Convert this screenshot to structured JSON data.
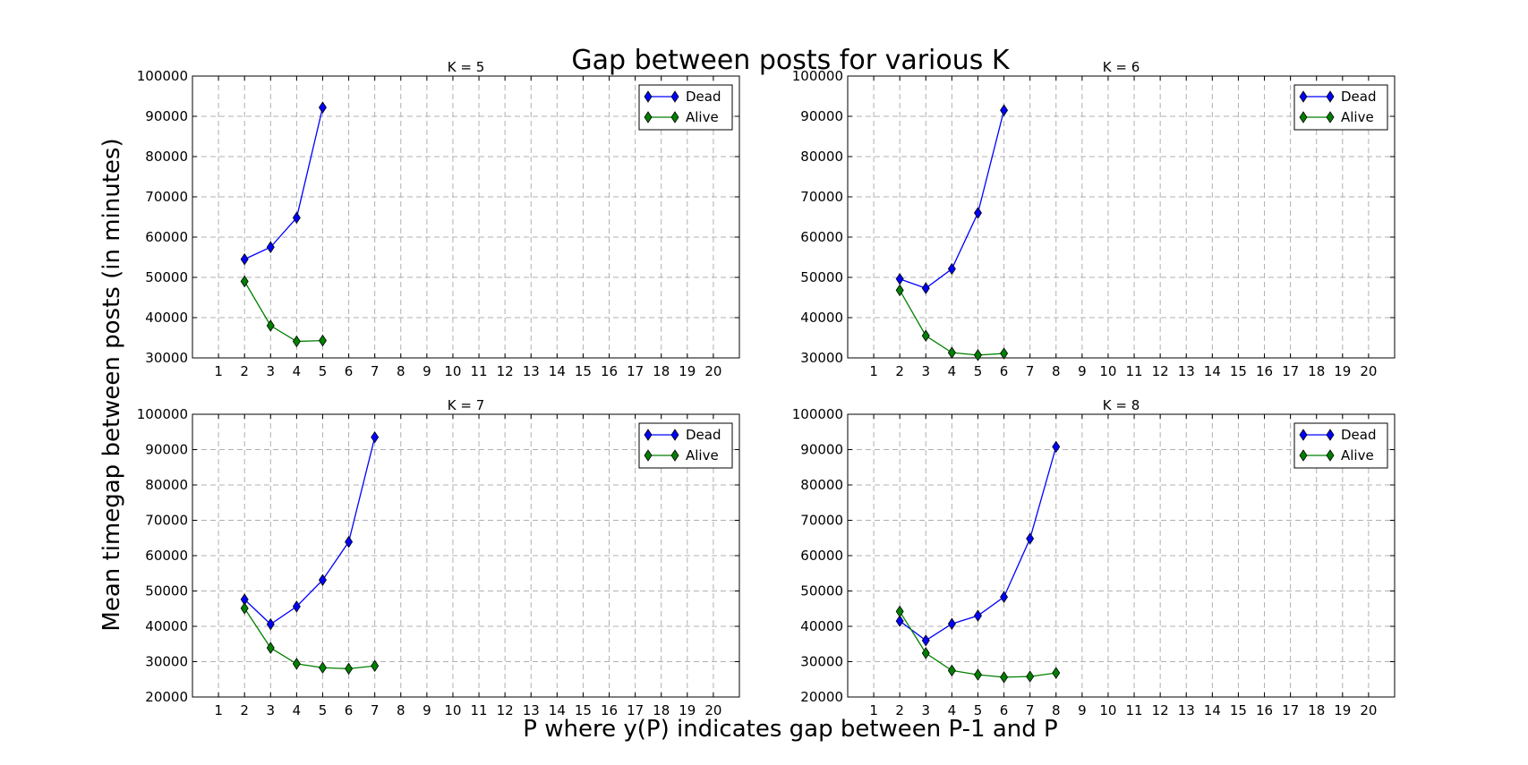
{
  "figure": {
    "title": "Gap between posts for various K",
    "xlabel": "P where y(P) indicates gap between P-1 and P",
    "ylabel": "Mean timegap between posts (in minutes)"
  },
  "colors": {
    "Dead": "#0000ff",
    "Alive": "#008000"
  },
  "chart_data": [
    {
      "type": "line",
      "title": "K = 5",
      "xticks": [
        1,
        2,
        3,
        4,
        5,
        6,
        7,
        8,
        9,
        10,
        11,
        12,
        13,
        14,
        15,
        16,
        17,
        18,
        19,
        20
      ],
      "xlim": [
        0,
        21
      ],
      "ylim": [
        30000,
        100000
      ],
      "yticks": [
        30000,
        40000,
        50000,
        60000,
        70000,
        80000,
        90000,
        100000
      ],
      "grid": true,
      "legend_position": "top-right",
      "series": [
        {
          "name": "Dead",
          "x": [
            2,
            3,
            4,
            5
          ],
          "y": [
            54500,
            57500,
            64800,
            92200
          ]
        },
        {
          "name": "Alive",
          "x": [
            2,
            3,
            4,
            5
          ],
          "y": [
            49000,
            38000,
            34100,
            34300
          ]
        }
      ]
    },
    {
      "type": "line",
      "title": "K = 6",
      "xticks": [
        1,
        2,
        3,
        4,
        5,
        6,
        7,
        8,
        9,
        10,
        11,
        12,
        13,
        14,
        15,
        16,
        17,
        18,
        19,
        20
      ],
      "xlim": [
        0,
        21
      ],
      "ylim": [
        30000,
        100000
      ],
      "yticks": [
        30000,
        40000,
        50000,
        60000,
        70000,
        80000,
        90000,
        100000
      ],
      "grid": true,
      "legend_position": "top-right",
      "series": [
        {
          "name": "Dead",
          "x": [
            2,
            3,
            4,
            5,
            6
          ],
          "y": [
            49600,
            47300,
            52100,
            66000,
            91500
          ]
        },
        {
          "name": "Alive",
          "x": [
            2,
            3,
            4,
            5,
            6
          ],
          "y": [
            46800,
            35500,
            31300,
            30700,
            31100
          ]
        }
      ]
    },
    {
      "type": "line",
      "title": "K = 7",
      "xticks": [
        1,
        2,
        3,
        4,
        5,
        6,
        7,
        8,
        9,
        10,
        11,
        12,
        13,
        14,
        15,
        16,
        17,
        18,
        19,
        20
      ],
      "xlim": [
        0,
        21
      ],
      "ylim": [
        20000,
        100000
      ],
      "yticks": [
        20000,
        30000,
        40000,
        50000,
        60000,
        70000,
        80000,
        90000,
        100000
      ],
      "grid": true,
      "legend_position": "top-right",
      "series": [
        {
          "name": "Dead",
          "x": [
            2,
            3,
            4,
            5,
            6,
            7
          ],
          "y": [
            47600,
            40600,
            45600,
            53100,
            63900,
            93500
          ]
        },
        {
          "name": "Alive",
          "x": [
            2,
            3,
            4,
            5,
            6,
            7
          ],
          "y": [
            45100,
            33900,
            29400,
            28300,
            28000,
            28800
          ]
        }
      ]
    },
    {
      "type": "line",
      "title": "K = 8",
      "xticks": [
        1,
        2,
        3,
        4,
        5,
        6,
        7,
        8,
        9,
        10,
        11,
        12,
        13,
        14,
        15,
        16,
        17,
        18,
        19,
        20
      ],
      "xlim": [
        0,
        21
      ],
      "ylim": [
        20000,
        100000
      ],
      "yticks": [
        20000,
        30000,
        40000,
        50000,
        60000,
        70000,
        80000,
        90000,
        100000
      ],
      "grid": true,
      "legend_position": "top-right",
      "series": [
        {
          "name": "Dead",
          "x": [
            2,
            3,
            4,
            5,
            6,
            7,
            8
          ],
          "y": [
            41500,
            36000,
            40700,
            43000,
            48300,
            64800,
            90800
          ]
        },
        {
          "name": "Alive",
          "x": [
            2,
            3,
            4,
            5,
            6,
            7,
            8
          ],
          "y": [
            44200,
            32400,
            27500,
            26300,
            25600,
            25800,
            26800
          ]
        }
      ]
    }
  ]
}
